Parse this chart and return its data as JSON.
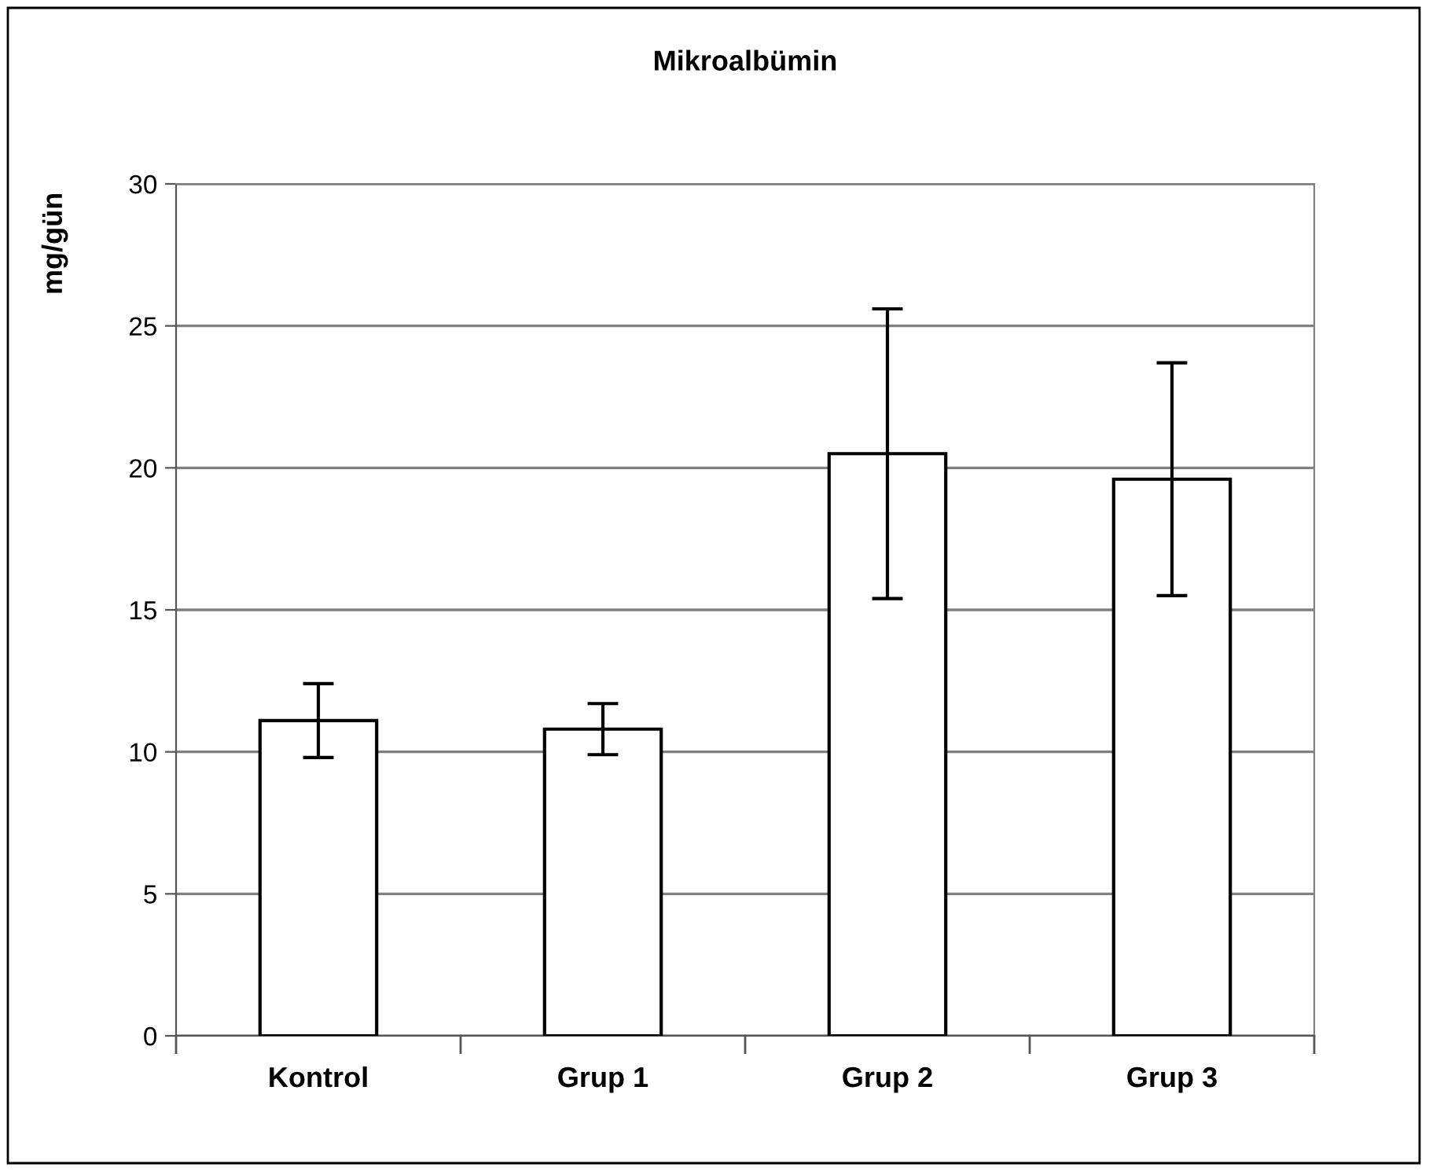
{
  "chart_data": {
    "type": "bar",
    "title": "Mikroalbümin",
    "ylabel": "mg/gün",
    "categories": [
      "Kontrol",
      "Grup 1",
      "Grup 2",
      "Grup 3"
    ],
    "values": [
      11.1,
      10.8,
      20.5,
      19.6
    ],
    "errors": [
      1.3,
      0.9,
      5.1,
      4.1
    ],
    "color": "#ffffff",
    "ylim": [
      0,
      30
    ],
    "yticks": [
      0,
      5,
      10,
      15,
      20,
      25,
      30
    ],
    "grid": "y",
    "legend": false
  }
}
